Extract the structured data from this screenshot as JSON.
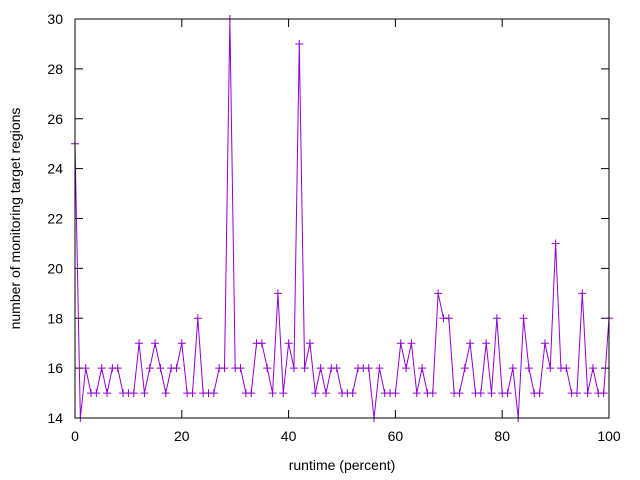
{
  "chart_data": {
    "type": "line",
    "title": "",
    "xlabel": "runtime (percent)",
    "ylabel": "number of monitoring target regions",
    "xlim": [
      0,
      100
    ],
    "ylim": [
      14,
      30
    ],
    "xticks": [
      0,
      20,
      40,
      60,
      80,
      100
    ],
    "yticks": [
      14,
      16,
      18,
      20,
      22,
      24,
      26,
      28,
      30
    ],
    "grid": false,
    "legend": "none",
    "series": [
      {
        "color": "#9400d3",
        "marker": "plus",
        "x": [
          0,
          1,
          2,
          3,
          4,
          5,
          6,
          7,
          8,
          9,
          10,
          11,
          12,
          13,
          14,
          15,
          16,
          17,
          18,
          19,
          20,
          21,
          22,
          23,
          24,
          25,
          26,
          27,
          28,
          29,
          30,
          31,
          32,
          33,
          34,
          35,
          36,
          37,
          38,
          39,
          40,
          41,
          42,
          43,
          44,
          45,
          46,
          47,
          48,
          49,
          50,
          51,
          52,
          53,
          54,
          55,
          56,
          57,
          58,
          59,
          60,
          61,
          62,
          63,
          64,
          65,
          66,
          67,
          68,
          69,
          70,
          71,
          72,
          73,
          74,
          75,
          76,
          77,
          78,
          79,
          80,
          81,
          82,
          83,
          84,
          85,
          86,
          87,
          88,
          89,
          90,
          91,
          92,
          93,
          94,
          95,
          96,
          97,
          98,
          99,
          100
        ],
        "values": [
          25,
          14,
          16,
          15,
          15,
          16,
          15,
          16,
          16,
          15,
          15,
          15,
          17,
          15,
          16,
          17,
          16,
          15,
          16,
          16,
          17,
          15,
          15,
          18,
          15,
          15,
          15,
          16,
          16,
          30,
          16,
          16,
          15,
          15,
          17,
          17,
          16,
          15,
          19,
          15,
          17,
          16,
          29,
          16,
          17,
          15,
          16,
          15,
          16,
          16,
          15,
          15,
          15,
          16,
          16,
          16,
          14,
          16,
          15,
          15,
          15,
          17,
          16,
          17,
          15,
          16,
          15,
          15,
          19,
          18,
          18,
          15,
          15,
          16,
          17,
          15,
          15,
          17,
          15,
          18,
          15,
          15,
          16,
          14,
          18,
          16,
          15,
          15,
          17,
          16,
          21,
          16,
          16,
          15,
          15,
          19,
          15,
          16,
          15,
          15,
          18
        ]
      }
    ]
  }
}
